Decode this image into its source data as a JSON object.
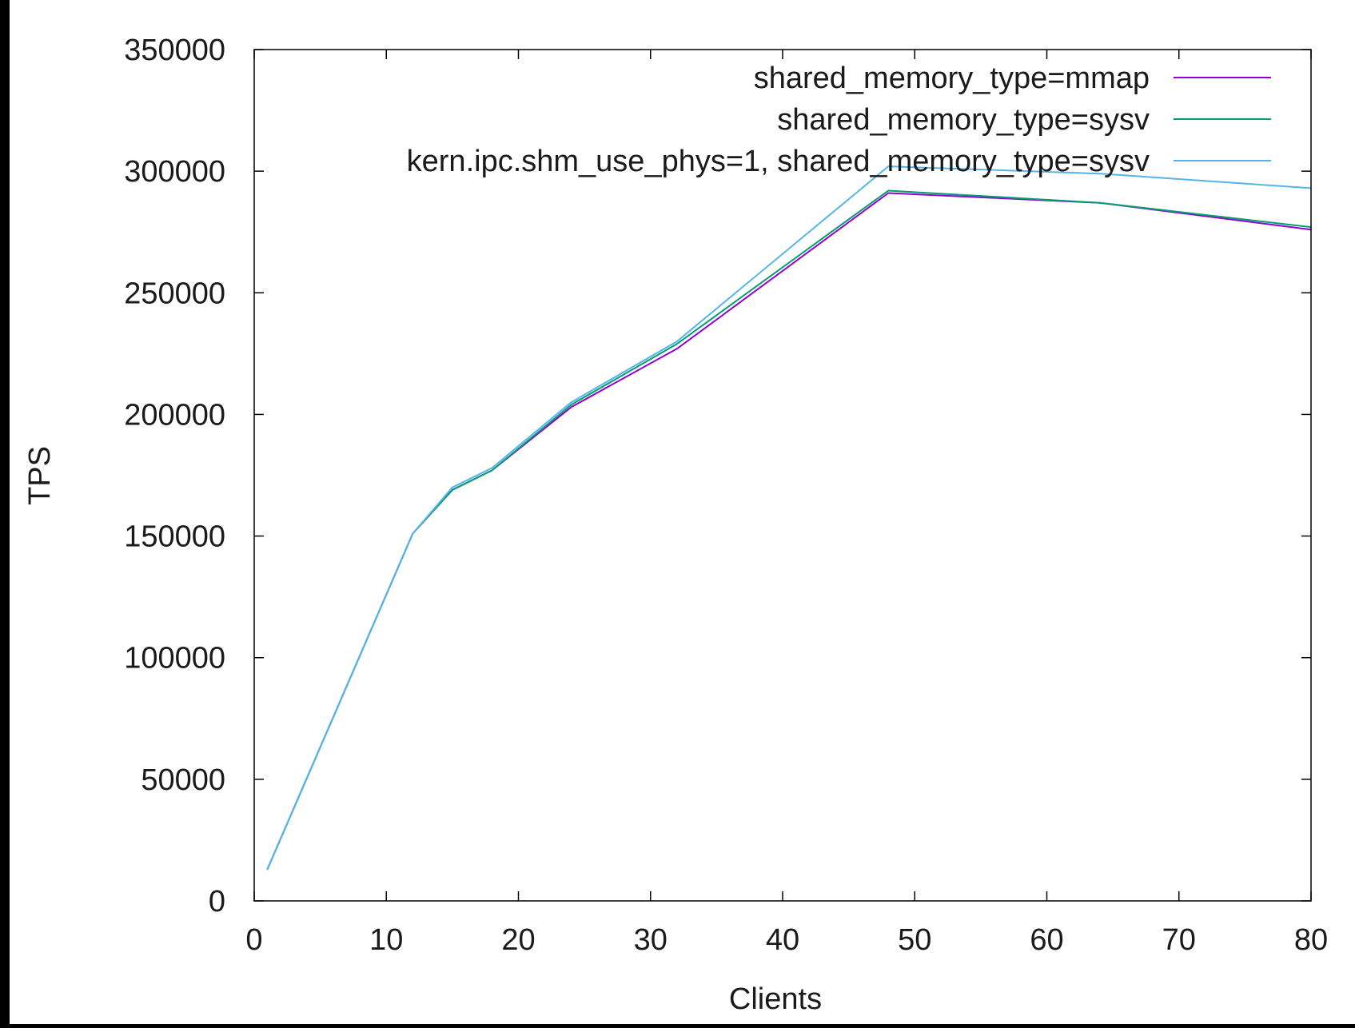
{
  "chart_data": {
    "type": "line",
    "title": "",
    "xlabel": "Clients",
    "ylabel": "TPS",
    "xlim": [
      0,
      80
    ],
    "ylim": [
      0,
      350000
    ],
    "x_ticks": [
      0,
      10,
      20,
      30,
      40,
      50,
      60,
      70,
      80
    ],
    "y_ticks": [
      0,
      50000,
      100000,
      150000,
      200000,
      250000,
      300000,
      350000
    ],
    "grid": false,
    "legend_position": "top-right",
    "series": [
      {
        "name": "shared_memory_type=mmap",
        "color": "#9400d3",
        "x": [
          1,
          12,
          15,
          18,
          24,
          32,
          48,
          64,
          80
        ],
        "y": [
          13000,
          151000,
          169000,
          177000,
          203000,
          227000,
          291000,
          287000,
          276000
        ]
      },
      {
        "name": "shared_memory_type=sysv",
        "color": "#009e73",
        "x": [
          1,
          12,
          15,
          18,
          24,
          32,
          48,
          64,
          80
        ],
        "y": [
          13000,
          151000,
          169000,
          177000,
          204000,
          229000,
          292000,
          287000,
          277000
        ]
      },
      {
        "name": "kern.ipc.shm_use_phys=1, shared_memory_type=sysv",
        "color": "#56b4e9",
        "x": [
          1,
          12,
          15,
          18,
          24,
          32,
          48,
          64,
          80
        ],
        "y": [
          13000,
          151000,
          170000,
          178000,
          205000,
          230000,
          302000,
          299000,
          293000
        ]
      }
    ]
  }
}
